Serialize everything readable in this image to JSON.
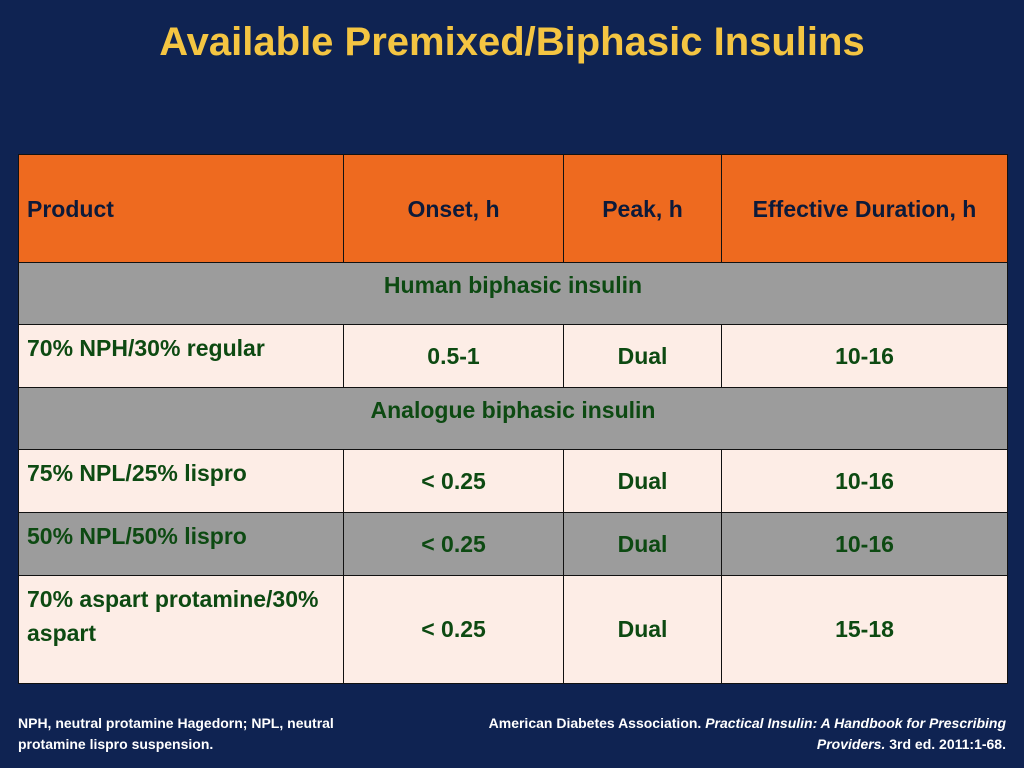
{
  "title": "Available Premixed/Biphasic Insulins",
  "table": {
    "headers": [
      "Product",
      "Onset, h",
      "Peak, h",
      "Effective Duration, h"
    ],
    "sections": [
      {
        "label": "Human biphasic insulin",
        "rows": [
          {
            "product": "70% NPH/30% regular",
            "onset": "0.5-1",
            "peak": "Dual",
            "duration": "10-16"
          }
        ]
      },
      {
        "label": "Analogue biphasic insulin",
        "rows": [
          {
            "product": "75% NPL/25% lispro",
            "onset": "< 0.25",
            "peak": "Dual",
            "duration": "10-16"
          },
          {
            "product": "50% NPL/50% lispro",
            "onset": "< 0.25",
            "peak": "Dual",
            "duration": "10-16"
          },
          {
            "product": "70% aspart protamine/30% aspart",
            "onset": "< 0.25",
            "peak": "Dual",
            "duration": "15-18"
          }
        ]
      }
    ]
  },
  "footnote": "NPH, neutral protamine Hagedorn; NPL, neutral protamine lispro suspension.",
  "reference": {
    "prefix": "American Diabetes Association. ",
    "title": "Practical Insulin: A Handbook for Prescribing Providers.",
    "suffix": " 3rd ed. 2011:1-68."
  },
  "colors": {
    "background": "#0f2352",
    "title": "#f4c542",
    "header": "#ee6a1f",
    "section": "#9c9c9c",
    "row_light": "#fdede6",
    "text_green": "#0d4a12"
  }
}
